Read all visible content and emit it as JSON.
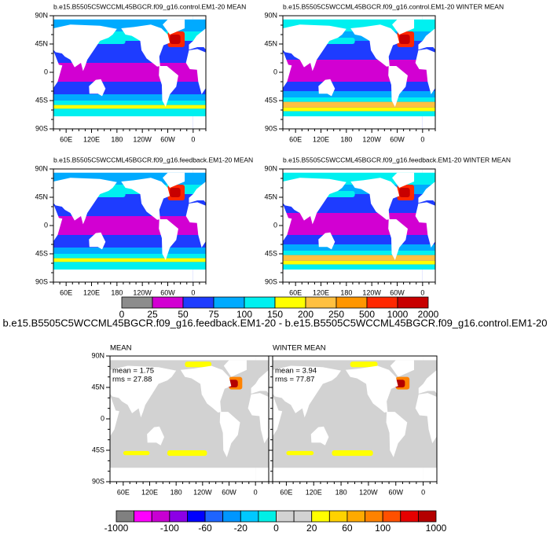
{
  "panels": [
    {
      "title": "b.e15.B5505C5WCCML45BGCR.f09_g16.control.EM1-20 MEAN"
    },
    {
      "title": "b.e15.B5505C5WCCML45BGCR.f09_g16.control.EM1-20 WINTER MEAN"
    },
    {
      "title": "b.e15.B5505C5WCCML45BGCR.f09_g16.feedback.EM1-20 MEAN"
    },
    {
      "title": "b.e15.B5505C5WCCML45BGCR.f09_g16.feedback.EM1-20 WINTER MEAN"
    }
  ],
  "lat_labels": [
    "90N",
    "45N",
    "0",
    "45S",
    "90S"
  ],
  "lon_labels": [
    "60E",
    "120E",
    "180",
    "120W",
    "60W",
    "0"
  ],
  "colorbar_top": {
    "levels": [
      0,
      25,
      50,
      75,
      100,
      150,
      200,
      250,
      500,
      1000,
      2000
    ],
    "colors": [
      "#8c8c8c",
      "#d200d2",
      "#1e3cff",
      "#00aaff",
      "#00f0f0",
      "#ffff00",
      "#ffc040",
      "#ff9600",
      "#ff2800",
      "#c80000"
    ]
  },
  "heading": "b.e15.B5505C5WCCML45BGCR.f09_g16.feedback.EM1-20 - b.e15.B5505C5WCCML45BGCR.f09_g16.control.EM1-20",
  "diff_panels": [
    {
      "title": "MEAN",
      "stats": [
        "mean = 1.75",
        "rms = 27.88"
      ]
    },
    {
      "title": "WINTER MEAN",
      "stats": [
        "mean = 3.94",
        "rms = 77.87"
      ]
    }
  ],
  "colorbar_bottom": {
    "levels": [
      -1000,
      null,
      null,
      -100,
      null,
      -60,
      null,
      -20,
      null,
      0,
      null,
      20,
      null,
      60,
      null,
      100,
      null,
      null,
      1000
    ],
    "colors": [
      "#808080",
      "#ff00ff",
      "#c800d2",
      "#8c00e6",
      "#0000ff",
      "#1e64ff",
      "#0096ff",
      "#00c8ff",
      "#00f0e6",
      "#d2d2d2",
      "#d2d2d2",
      "#ffff00",
      "#ffd200",
      "#ffaa00",
      "#ff8200",
      "#ff5000",
      "#e60000",
      "#b40000"
    ]
  }
}
